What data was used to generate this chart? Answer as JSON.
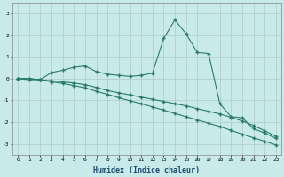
{
  "xlabel": "Humidex (Indice chaleur)",
  "xlim": [
    -0.5,
    23.5
  ],
  "ylim": [
    -3.5,
    3.5
  ],
  "yticks": [
    -3,
    -2,
    -1,
    0,
    1,
    2,
    3
  ],
  "xticks": [
    0,
    1,
    2,
    3,
    4,
    5,
    6,
    7,
    8,
    9,
    10,
    11,
    12,
    13,
    14,
    15,
    16,
    17,
    18,
    19,
    20,
    21,
    22,
    23
  ],
  "bg_color": "#c8eaea",
  "line_color": "#2a7a6a",
  "grid_color": "#c8c8c8",
  "line1_x": [
    0,
    1,
    2,
    3,
    4,
    5,
    6,
    7,
    8,
    9,
    10,
    11,
    12,
    13,
    14,
    15,
    16,
    17,
    18,
    19,
    20,
    21,
    22,
    23
  ],
  "line1_y": [
    0.0,
    -0.05,
    -0.05,
    0.28,
    0.38,
    0.52,
    0.58,
    0.32,
    0.2,
    0.15,
    0.1,
    0.15,
    0.25,
    1.85,
    2.7,
    2.05,
    1.2,
    1.15,
    -1.15,
    -1.75,
    -1.8,
    -2.3,
    -2.5,
    -2.75
  ],
  "line2_x": [
    0,
    1,
    2,
    3,
    4,
    5,
    6,
    7,
    8,
    9,
    10,
    11,
    12,
    13,
    14,
    15,
    16,
    17,
    18,
    19,
    20,
    21,
    22,
    23
  ],
  "line2_y": [
    0.0,
    0.0,
    -0.05,
    -0.1,
    -0.15,
    -0.2,
    -0.28,
    -0.4,
    -0.55,
    -0.65,
    -0.75,
    -0.85,
    -0.95,
    -1.05,
    -1.15,
    -1.25,
    -1.38,
    -1.5,
    -1.62,
    -1.78,
    -1.95,
    -2.15,
    -2.4,
    -2.65
  ],
  "line3_x": [
    0,
    1,
    2,
    3,
    4,
    5,
    6,
    7,
    8,
    9,
    10,
    11,
    12,
    13,
    14,
    15,
    16,
    17,
    18,
    19,
    20,
    21,
    22,
    23
  ],
  "line3_y": [
    0.0,
    0.0,
    -0.05,
    -0.15,
    -0.22,
    -0.32,
    -0.42,
    -0.58,
    -0.72,
    -0.88,
    -1.02,
    -1.15,
    -1.3,
    -1.45,
    -1.6,
    -1.75,
    -1.9,
    -2.05,
    -2.2,
    -2.38,
    -2.55,
    -2.72,
    -2.88,
    -3.05
  ]
}
